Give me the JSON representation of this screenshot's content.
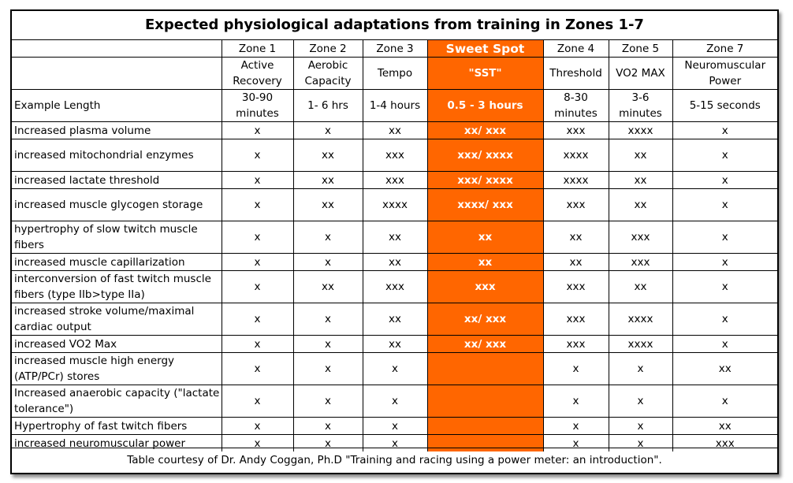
{
  "title": "Expected physiological adaptations from training in Zones 1-7",
  "zones": [
    "Zone 1",
    "Zone 2",
    "Zone 3",
    "Sweet Spot",
    "Zone 4",
    "Zone 5",
    "Zone 7"
  ],
  "zone_names": [
    "Active Recovery",
    "Aerobic Capacity",
    "Tempo",
    "\"SST\"",
    "Threshold",
    "VO2 MAX",
    "Neuromuscular Power"
  ],
  "example_length": {
    "label": "Example Length",
    "values": [
      "30-90 minutes",
      "1- 6 hrs",
      "1-4 hours",
      "0.5 - 3 hours",
      "8-30 minutes",
      "3-6 minutes",
      "5-15 seconds"
    ]
  },
  "rows": [
    {
      "label": "Increased plasma volume",
      "values": [
        "x",
        "x",
        "xx",
        "xx/ xxx",
        "xxx",
        "xxxx",
        "x"
      ]
    },
    {
      "label": "increased mitochondrial enzymes",
      "values": [
        "x",
        "xx",
        "xxx",
        "xxx/ xxxx",
        "xxxx",
        "xx",
        "x"
      ]
    },
    {
      "label": "increased lactate threshold",
      "values": [
        "x",
        "xx",
        "xxx",
        "xxx/ xxxx",
        "xxxx",
        "xx",
        "x"
      ]
    },
    {
      "label": "increased muscle glycogen storage",
      "values": [
        "x",
        "xx",
        "xxxx",
        "xxxx/ xxx",
        "xxx",
        "xx",
        "x"
      ]
    },
    {
      "label": "hypertrophy of slow twitch muscle fibers",
      "values": [
        "x",
        "x",
        "xx",
        "xx",
        "xx",
        "xxx",
        "x"
      ]
    },
    {
      "label": "increased muscle capillarization",
      "values": [
        "x",
        "x",
        "xx",
        "xx",
        "xx",
        "xxx",
        "x"
      ]
    },
    {
      "label": "interconversion of fast twitch muscle fibers (type IIb>type IIa)",
      "values": [
        "x",
        "xx",
        "xxx",
        "xxx",
        "xxx",
        "xx",
        "x"
      ]
    },
    {
      "label": "increased stroke volume/maximal cardiac output",
      "values": [
        "x",
        "x",
        "xx",
        "xx/ xxx",
        "xxx",
        "xxxx",
        "x"
      ]
    },
    {
      "label": "increased VO2 Max",
      "values": [
        "x",
        "x",
        "xx",
        "xx/ xxx",
        "xxx",
        "xxxx",
        "x"
      ]
    },
    {
      "label": "increased muscle high energy (ATP/PCr) stores",
      "values": [
        "x",
        "x",
        "x",
        "",
        "x",
        "x",
        "xx"
      ]
    },
    {
      "label": "Increased anaerobic capacity (\"lactate tolerance\")",
      "values": [
        "x",
        "x",
        "x",
        "",
        "x",
        "x",
        "x"
      ]
    },
    {
      "label": "Hypertrophy of fast twitch fibers",
      "values": [
        "x",
        "x",
        "x",
        "",
        "x",
        "x",
        "xx"
      ]
    },
    {
      "label": "increased neuromuscular power",
      "values": [
        "x",
        "x",
        "x",
        "",
        "x",
        "x",
        "xxx"
      ]
    }
  ],
  "footer": "Table courtesy of Dr. Andy Coggan, Ph.D \"Training and racing using a power meter: an introduction\".",
  "colors": {
    "sweet_spot": "#ff6600",
    "text": "#000000",
    "background": "#ffffff"
  }
}
